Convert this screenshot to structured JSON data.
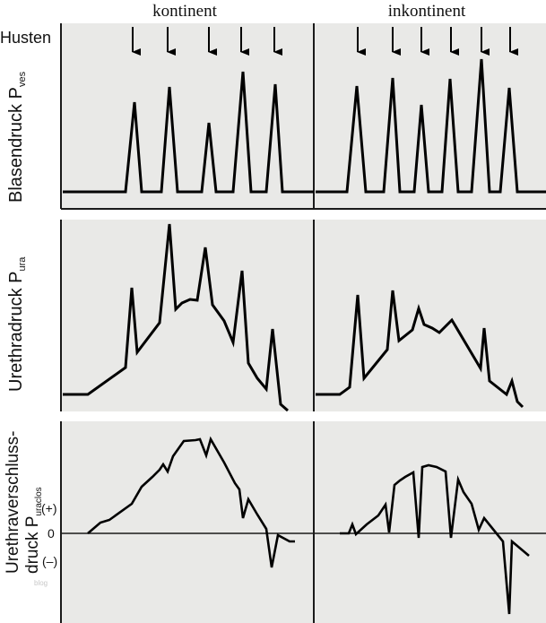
{
  "columns": {
    "left": "kontinent",
    "right": "inkontinent"
  },
  "row_labels": {
    "cough": "Husten",
    "bladder_main": "Blasendruck P",
    "bladder_sub": "ves",
    "urethra_main": "Urethradruck P",
    "urethra_sub": "ura",
    "closure_line1": "Urethraverschluss-",
    "closure_line2_main": "druck P",
    "closure_line2_sub": "uraclos"
  },
  "closure_ticks": {
    "plus": "(+)",
    "zero": "0",
    "minus": "(–)"
  },
  "watermark": "blog",
  "colors": {
    "panel": "#e9e9e7",
    "trace": "#000000",
    "frame": "#1a1a1a",
    "watermark": "#c8c8c8"
  },
  "cough_marker_icon": "down-arrow-icon"
}
